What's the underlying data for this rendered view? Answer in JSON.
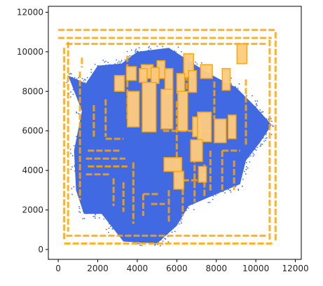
{
  "chart_data": {
    "type": "scatter",
    "title": "",
    "xlabel": "",
    "ylabel": "",
    "xlim": [
      -500,
      12300
    ],
    "ylim": [
      -500,
      12300
    ],
    "xticks": [
      0,
      2000,
      4000,
      6000,
      8000,
      10000,
      12000
    ],
    "yticks": [
      0,
      2000,
      4000,
      6000,
      8000,
      10000,
      12000
    ],
    "grid": false,
    "legend": "none",
    "colors": {
      "points": "#4169e1",
      "segments": "#ffa500",
      "boxes_fill": "#ffcc80"
    },
    "series": [
      {
        "kind": "point-cloud",
        "color": "#4169e1",
        "outline": [
          [
            500,
            8800
          ],
          [
            1400,
            8400
          ],
          [
            2000,
            9300
          ],
          [
            3200,
            9400
          ],
          [
            4000,
            10000
          ],
          [
            5600,
            10200
          ],
          [
            7000,
            9300
          ],
          [
            8000,
            8700
          ],
          [
            9000,
            8200
          ],
          [
            10000,
            7200
          ],
          [
            10800,
            6300
          ],
          [
            10200,
            5400
          ],
          [
            9500,
            4500
          ],
          [
            9200,
            3300
          ],
          [
            8000,
            2800
          ],
          [
            6600,
            2200
          ],
          [
            6000,
            1200
          ],
          [
            5000,
            300
          ],
          [
            3300,
            400
          ],
          [
            2200,
            1800
          ],
          [
            1300,
            1800
          ],
          [
            900,
            3000
          ],
          [
            800,
            5000
          ],
          [
            1200,
            7000
          ]
        ]
      },
      {
        "kind": "segments",
        "color": "#ffa500",
        "segments": [
          [
            [
              0,
              11100
            ],
            [
              11000,
              11100
            ]
          ],
          [
            [
              0,
              10700
            ],
            [
              10800,
              10700
            ]
          ],
          [
            [
              400,
              10400
            ],
            [
              10500,
              10400
            ]
          ],
          [
            [
              300,
              10200
            ],
            [
              300,
              500
            ]
          ],
          [
            [
              500,
              10500
            ],
            [
              500,
              900
            ]
          ],
          [
            [
              10700,
              10600
            ],
            [
              10700,
              500
            ]
          ],
          [
            [
              11000,
              11000
            ],
            [
              11000,
              400
            ]
          ],
          [
            [
              400,
              700
            ],
            [
              10600,
              700
            ]
          ],
          [
            [
              300,
              300
            ],
            [
              10900,
              300
            ]
          ],
          [
            [
              1100,
              9000
            ],
            [
              1100,
              2500
            ]
          ],
          [
            [
              1800,
              7300
            ],
            [
              1800,
              5600
            ]
          ],
          [
            [
              2400,
              7600
            ],
            [
              2400,
              5700
            ]
          ],
          [
            [
              3500,
              9800
            ],
            [
              3500,
              6600
            ]
          ],
          [
            [
              6500,
              9700
            ],
            [
              6500,
              7000
            ]
          ],
          [
            [
              7900,
              8500
            ],
            [
              7900,
              6600
            ]
          ],
          [
            [
              9500,
              8600
            ],
            [
              9500,
              5200
            ]
          ],
          [
            [
              2400,
              5600
            ],
            [
              3300,
              5600
            ]
          ],
          [
            [
              1500,
              5000
            ],
            [
              3200,
              5000
            ]
          ],
          [
            [
              1400,
              4600
            ],
            [
              3400,
              4600
            ]
          ],
          [
            [
              1500,
              4200
            ],
            [
              3500,
              4200
            ]
          ],
          [
            [
              1400,
              3800
            ],
            [
              2600,
              3800
            ]
          ],
          [
            [
              2800,
              3600
            ],
            [
              2800,
              2200
            ]
          ],
          [
            [
              3300,
              3400
            ],
            [
              3300,
              1900
            ]
          ],
          [
            [
              3800,
              4400
            ],
            [
              3800,
              1300
            ]
          ],
          [
            [
              4300,
              2800
            ],
            [
              4300,
              1700
            ]
          ],
          [
            [
              4300,
              2800
            ],
            [
              5100,
              2800
            ]
          ],
          [
            [
              4700,
              2300
            ],
            [
              5400,
              2300
            ]
          ],
          [
            [
              5600,
              3000
            ],
            [
              5600,
              1300
            ]
          ],
          [
            [
              6300,
              3500
            ],
            [
              6300,
              1700
            ]
          ],
          [
            [
              6300,
              3500
            ],
            [
              7100,
              3500
            ]
          ],
          [
            [
              6900,
              4700
            ],
            [
              6900,
              2400
            ]
          ],
          [
            [
              7400,
              4300
            ],
            [
              7400,
              2700
            ]
          ],
          [
            [
              7700,
              5000
            ],
            [
              7700,
              2900
            ]
          ],
          [
            [
              8300,
              5000
            ],
            [
              8300,
              3000
            ]
          ],
          [
            [
              8900,
              4500
            ],
            [
              8900,
              3000
            ]
          ],
          [
            [
              8300,
              5000
            ],
            [
              9200,
              5000
            ]
          ],
          [
            [
              5300,
              6000
            ],
            [
              7800,
              6000
            ]
          ],
          [
            [
              6000,
              7500
            ],
            [
              6000,
              4200
            ]
          ],
          [
            [
              1200,
              9700
            ],
            [
              1200,
              9200
            ]
          ]
        ]
      },
      {
        "kind": "boxes",
        "color": "#ffa500",
        "boxes": [
          [
            4500,
            9000,
            600,
            700
          ],
          [
            5200,
            9100,
            400,
            900
          ],
          [
            6600,
            9300,
            500,
            1200
          ],
          [
            3100,
            8400,
            500,
            800
          ],
          [
            3700,
            8900,
            500,
            700
          ],
          [
            4300,
            8800,
            400,
            700
          ],
          [
            4900,
            8800,
            400,
            800
          ],
          [
            5600,
            8500,
            400,
            1300
          ],
          [
            6200,
            8400,
            400,
            1000
          ],
          [
            6800,
            8500,
            400,
            1100
          ],
          [
            7500,
            9000,
            600,
            700
          ],
          [
            8500,
            8600,
            400,
            1100
          ],
          [
            9300,
            9900,
            500,
            1000
          ],
          [
            3800,
            7100,
            600,
            1800
          ],
          [
            4600,
            7200,
            700,
            2500
          ],
          [
            5500,
            7100,
            600,
            2000
          ],
          [
            6300,
            7000,
            500,
            2000
          ],
          [
            7000,
            6200,
            400,
            1000
          ],
          [
            7400,
            6200,
            700,
            1500
          ],
          [
            8200,
            6000,
            600,
            1200
          ],
          [
            8800,
            6200,
            400,
            1200
          ],
          [
            7000,
            5000,
            600,
            1100
          ],
          [
            5800,
            4300,
            900,
            700
          ],
          [
            6100,
            3500,
            500,
            900
          ],
          [
            7300,
            3800,
            400,
            800
          ]
        ]
      }
    ]
  }
}
